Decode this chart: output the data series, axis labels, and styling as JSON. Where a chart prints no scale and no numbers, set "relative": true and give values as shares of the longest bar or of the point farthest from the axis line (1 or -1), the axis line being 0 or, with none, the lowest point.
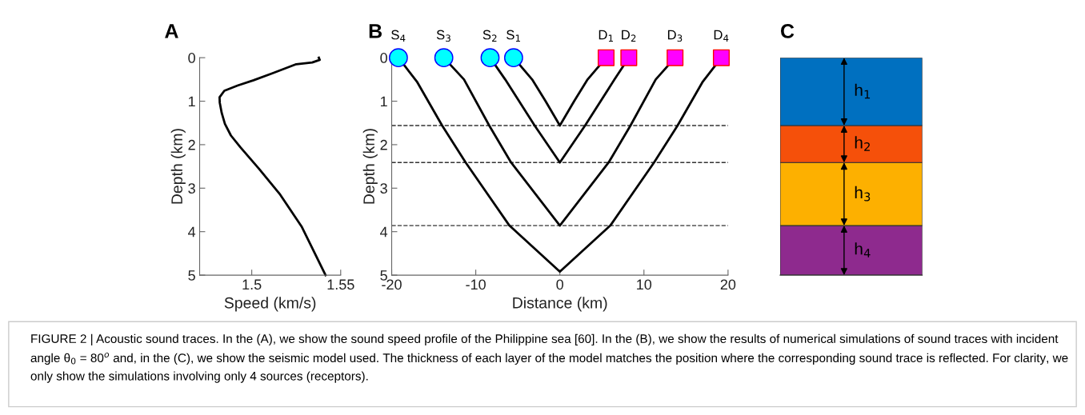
{
  "chart_data": [
    {
      "type": "line",
      "title": "A",
      "xlabel": "Speed (km/s)",
      "ylabel": "Depth (km)",
      "xlim": [
        1.4707,
        1.55
      ],
      "xticks": [
        1.5,
        1.55
      ],
      "ylim": [
        5,
        0
      ],
      "yticks": [
        0,
        1,
        2,
        3,
        4,
        5
      ],
      "grid": false,
      "marker": "none",
      "line_style": "solid",
      "series": [
        {
          "color": "#000000",
          "x": [
            1.5377,
            1.5382,
            1.534,
            1.525,
            1.5115,
            1.501,
            1.492,
            1.4846,
            1.4819,
            1.482,
            1.4831,
            1.4849,
            1.4883,
            1.4936,
            1.504,
            1.516,
            1.528,
            1.5415
          ],
          "values": [
            0,
            0.05,
            0.11,
            0.15,
            0.36,
            0.52,
            0.64,
            0.76,
            0.91,
            1.03,
            1.27,
            1.52,
            1.79,
            2.06,
            2.55,
            3.15,
            3.88,
            5.0
          ]
        }
      ]
    },
    {
      "type": "line",
      "title": "B",
      "xlabel": "Distance (km)",
      "ylabel": "Depth (km)",
      "xlim": [
        -20,
        20
      ],
      "xticks": [
        -20,
        -10,
        0,
        10,
        20
      ],
      "ylim": [
        5,
        0
      ],
      "yticks": [
        0,
        1,
        2,
        3,
        4,
        5
      ],
      "grid": false,
      "line_style": "solid",
      "series": [
        {
          "color": "#000000",
          "x": [
            -5.5,
            -3.3,
            -1.7,
            0,
            1.7,
            3.3,
            5.5
          ],
          "values": [
            0,
            0.5,
            1.0,
            1.56,
            1.0,
            0.5,
            0
          ]
        },
        {
          "color": "#000000",
          "x": [
            -8.3,
            -6.5,
            -3.0,
            0,
            3.0,
            6.5,
            8.2
          ],
          "values": [
            0,
            0.5,
            1.56,
            2.41,
            1.56,
            0.5,
            0
          ]
        },
        {
          "color": "#000000",
          "x": [
            -13.8,
            -11.4,
            -8.4,
            -5.8,
            0,
            5.8,
            8.4,
            11.4,
            13.7
          ],
          "values": [
            0,
            0.5,
            1.56,
            2.41,
            3.86,
            2.41,
            1.56,
            0.5,
            0
          ]
        },
        {
          "color": "#000000",
          "x": [
            -19.2,
            -17.0,
            -14.0,
            -11.2,
            -6.0,
            0,
            6.0,
            11.2,
            14.0,
            17.0,
            19.2
          ],
          "values": [
            0,
            0.55,
            1.56,
            2.41,
            3.86,
            4.92,
            3.86,
            2.41,
            1.56,
            0.55,
            0
          ]
        },
        {
          "type": "scatter",
          "marker": "circle",
          "color": "#00ffff",
          "x": [
            -19.2,
            -13.8,
            -8.3,
            -5.5
          ],
          "values": [
            0,
            0,
            0,
            0
          ]
        },
        {
          "type": "scatter",
          "marker": "square",
          "color": "#ff00ff",
          "x": [
            5.5,
            8.2,
            13.7,
            19.2
          ],
          "values": [
            0,
            0,
            0,
            0
          ]
        }
      ],
      "ref_lines": [
        {
          "axis": "y",
          "value": 1.56,
          "color": "#333333",
          "line_style": "dashed"
        },
        {
          "axis": "y",
          "value": 2.41,
          "color": "#333333",
          "line_style": "dashed"
        },
        {
          "axis": "y",
          "value": 3.86,
          "color": "#333333",
          "line_style": "dashed"
        }
      ],
      "annotations": [
        {
          "text": "S$_{4}$",
          "x": -19.2,
          "y": 0
        },
        {
          "text": "S$_{3}$",
          "x": -13.8,
          "y": 0
        },
        {
          "text": "S$_{2}$",
          "x": -8.3,
          "y": 0
        },
        {
          "text": "S$_{1}$",
          "x": -5.5,
          "y": 0
        },
        {
          "text": "D$_{1}$",
          "x": 5.5,
          "y": 0
        },
        {
          "text": "D$_{2}$",
          "x": 8.2,
          "y": 0
        },
        {
          "text": "D$_{3}$",
          "x": 13.7,
          "y": 0
        },
        {
          "text": "D$_{4}$",
          "x": 19.2,
          "y": 0
        },
        "FIGURE 2 | Acoustic sound traces. In the (A), we show the sound speed profile of the Philippine sea [60]. In the (B), we show the results of numerical simulations of sound traces with incident angle θ$_{0}$ = 80$^{o}$ and, in the (C), we show the seismic model used. The thickness of each layer of the model matches the position where the corresponding sound trace is reflected. For clarity, we only show the simulations involving only 4 sources (receptors)."
      ]
    },
    {
      "type": "bar",
      "title": "C",
      "stacked": true,
      "relative": true,
      "categories": [
        null
      ],
      "series": [
        {
          "name": "h$_{4}$",
          "color": "#8e2a8e",
          "values": [
            0.228
          ]
        },
        {
          "name": "h$_{3}$",
          "color": "#fdb000",
          "values": [
            0.29
          ]
        },
        {
          "name": "h$_{2}$",
          "color": "#f5500a",
          "values": [
            0.17
          ]
        },
        {
          "name": "h$_{1}$",
          "color": "#0070c0",
          "values": [
            0.312
          ]
        }
      ]
    }
  ]
}
